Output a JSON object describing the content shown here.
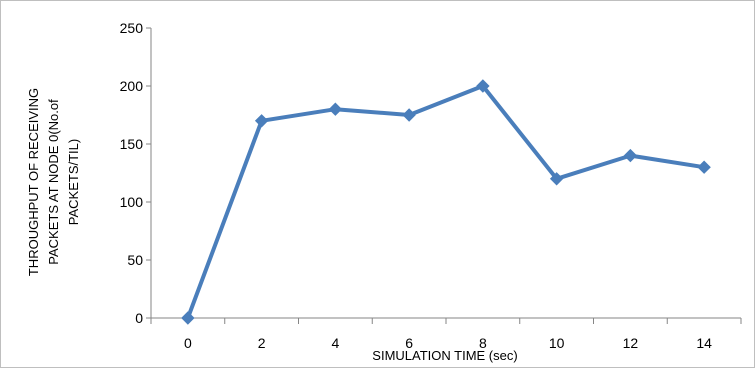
{
  "chart_data": {
    "type": "line",
    "title": "",
    "xlabel": "SIMULATION TIME (sec)",
    "ylabel_lines": [
      "THROUGHPUT  OF RECEIVING",
      "PACKETS AT NODE 0(No.of",
      "PACKETS/TIL)"
    ],
    "x": [
      0,
      2,
      4,
      6,
      8,
      10,
      12,
      14
    ],
    "series": [
      {
        "values": [
          0,
          170,
          180,
          175,
          200,
          120,
          140,
          130
        ],
        "color": "#4a7ebb"
      }
    ],
    "x_tick_labels": [
      "0",
      "2",
      "4",
      "6",
      "8",
      "10",
      "12",
      "14"
    ],
    "y_ticks": [
      0,
      50,
      100,
      150,
      200,
      250
    ],
    "ylim": [
      0,
      250
    ],
    "grid": false,
    "legend": "none",
    "marker": "diamond",
    "axis_color": "#868686"
  }
}
